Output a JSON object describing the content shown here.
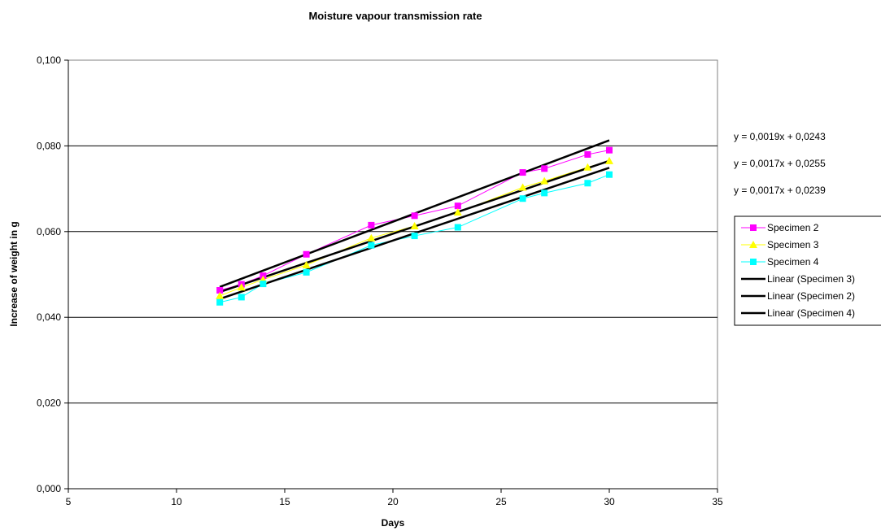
{
  "chart_data": {
    "type": "scatter",
    "title": "Moisture vapour transmission rate",
    "xlabel": "Days",
    "ylabel": "Increase of weight in g",
    "xlim": [
      5,
      35
    ],
    "ylim": [
      0,
      0.1
    ],
    "x_ticks": [
      "5",
      "10",
      "15",
      "20",
      "25",
      "30",
      "35"
    ],
    "y_ticks": [
      "0,000",
      "0,020",
      "0,040",
      "0,060",
      "0,080",
      "0,100"
    ],
    "grid": "horizontal major gridlines",
    "legend_position": "right",
    "series": [
      {
        "name": "Specimen 2",
        "color": "#ff00ff",
        "marker": "square",
        "x": [
          12,
          13,
          14,
          16,
          19,
          21,
          23,
          26,
          27,
          29,
          30
        ],
        "y": [
          0.0463,
          0.0477,
          0.0497,
          0.0547,
          0.0615,
          0.0637,
          0.066,
          0.0738,
          0.0747,
          0.078,
          0.079
        ]
      },
      {
        "name": "Specimen 3",
        "color": "#ffff00",
        "marker": "triangle",
        "x": [
          12,
          13,
          14,
          16,
          19,
          21,
          23,
          26,
          27,
          29,
          30
        ],
        "y": [
          0.045,
          0.047,
          0.0488,
          0.0522,
          0.0585,
          0.0613,
          0.0645,
          0.0703,
          0.0718,
          0.075,
          0.0765
        ]
      },
      {
        "name": "Specimen 4",
        "color": "#00ffff",
        "marker": "square",
        "x": [
          12,
          13,
          14,
          16,
          19,
          21,
          23,
          26,
          27,
          29,
          30
        ],
        "y": [
          0.0435,
          0.0447,
          0.0478,
          0.0505,
          0.0568,
          0.059,
          0.061,
          0.0677,
          0.069,
          0.0713,
          0.0733
        ]
      }
    ],
    "trendlines": [
      {
        "name": "Linear (Specimen 3)",
        "slope": 0.0017,
        "intercept": 0.0255,
        "x_range": [
          12,
          30
        ],
        "color": "#000000"
      },
      {
        "name": "Linear (Specimen 2)",
        "slope": 0.0019,
        "intercept": 0.0243,
        "x_range": [
          12,
          30
        ],
        "color": "#000000"
      },
      {
        "name": "Linear (Specimen 4)",
        "slope": 0.0017,
        "intercept": 0.0239,
        "x_range": [
          12,
          30
        ],
        "color": "#000000"
      }
    ],
    "equations": [
      "y = 0,0019x + 0,0243",
      "y = 0,0017x + 0,0255",
      "y = 0,0017x + 0,0239"
    ]
  }
}
